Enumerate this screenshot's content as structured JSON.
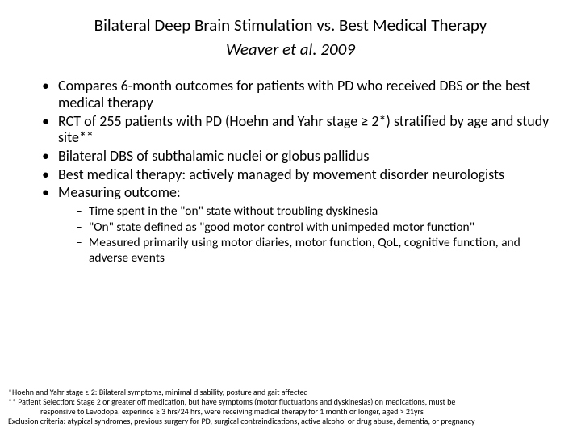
{
  "title": "Bilateral Deep Brain Stimulation vs. Best Medical Therapy",
  "subtitle": "Weaver et al. 2009",
  "bullets": [
    "Compares 6-month outcomes for patients with PD who received DBS or the best medical therapy",
    "RCT of 255 patients with PD (Hoehn and Yahr stage ≥ 2*) stratified by age and study site**",
    "Bilateral DBS of subthalamic nuclei or globus pallidus",
    "Best medical therapy: actively managed by movement disorder neurologists",
    "Measuring outcome:"
  ],
  "subbullets": [
    "Time spent in the \"on\" state without troubling dyskinesia",
    "\"On\" state defined as \"good motor control with unimpeded motor function\"",
    "Measured primarily using motor diaries, motor function, QoL, cognitive function, and adverse events"
  ],
  "footnotes": {
    "l1": "*Hoehn and Yahr stage ≥ 2: Bilateral symptoms, minimal disability, posture and gait affected",
    "l2": "** Patient Selection: Stage 2 or greater off medication, but have symptoms (motor fluctuations and dyskinesias) on medications, must be",
    "l3": "responsive to Levodopa, experince ≥  3 hrs/24 hrs, were receiving medical therapy for 1 month or longer, aged > 21yrs",
    "l4": "Exclusion criteria: atypical syndromes, previous surgery for PD, surgical contraindications, active alcohol or drug abuse, dementia, or pregnancy"
  }
}
